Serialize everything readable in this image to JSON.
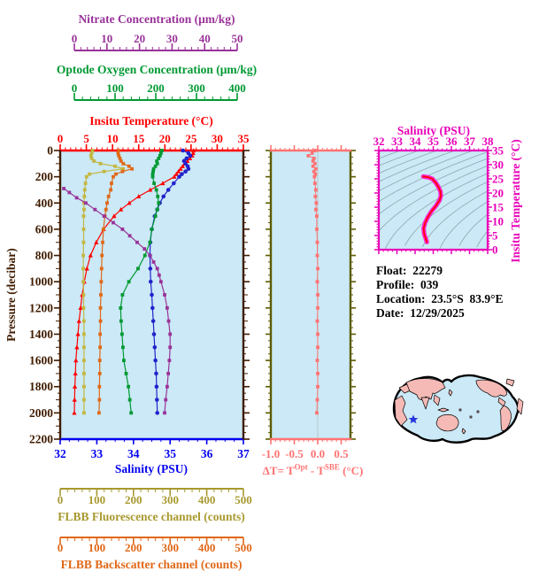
{
  "figure": {
    "background": "#ffffff",
    "plot_background": "#cbe9f6"
  },
  "axes": {
    "nitrate": {
      "title": "Nitrate Concentration (μm/kg)",
      "color": "#993399",
      "range": [
        0,
        50
      ],
      "ticks": [
        0,
        10,
        20,
        30,
        40,
        50
      ],
      "tick_labels": [
        "0",
        "10",
        "20",
        "30",
        "40",
        "50"
      ]
    },
    "oxygen": {
      "title": "Optode Oxygen Concentration (μm/kg)",
      "color": "#009933",
      "range": [
        0,
        400
      ],
      "ticks": [
        0,
        100,
        200,
        300,
        400
      ],
      "tick_labels": [
        "0",
        "100",
        "200",
        "300",
        "400"
      ]
    },
    "temperature": {
      "title": "Insitu Temperature (°C)",
      "color": "#ff0000",
      "range": [
        0,
        35
      ],
      "ticks": [
        0,
        5,
        10,
        15,
        20,
        25,
        30,
        35
      ],
      "tick_labels": [
        "0",
        "5",
        "10",
        "15",
        "20",
        "25",
        "30",
        "35"
      ]
    },
    "pressure": {
      "title": "Pressure (decibar)",
      "color": "#401c00",
      "range": [
        0,
        2200
      ],
      "ticks": [
        0,
        200,
        400,
        600,
        800,
        1000,
        1200,
        1400,
        1600,
        1800,
        2000,
        2200
      ],
      "tick_labels": [
        "0",
        "200",
        "400",
        "600",
        "800",
        "1000",
        "1200",
        "1400",
        "1600",
        "1800",
        "2000",
        "2200"
      ]
    },
    "salinity": {
      "title": "Salinity (PSU)",
      "color": "#0000f0",
      "range": [
        32,
        37
      ],
      "ticks": [
        32,
        33,
        34,
        35,
        36,
        37
      ],
      "tick_labels": [
        "32",
        "33",
        "34",
        "35",
        "36",
        "37"
      ]
    },
    "fluorescence": {
      "title": "FLBB Fluorescence channel (counts)",
      "color": "#a8992e",
      "range": [
        0,
        500
      ],
      "ticks": [
        0,
        100,
        200,
        300,
        400,
        500
      ],
      "tick_labels": [
        "0",
        "100",
        "200",
        "300",
        "400",
        "500"
      ]
    },
    "backscatter": {
      "title": "FLBB Backscatter channel (counts)",
      "color": "#e06818",
      "range": [
        0,
        500
      ],
      "ticks": [
        0,
        100,
        200,
        300,
        400,
        500
      ],
      "tick_labels": [
        "0",
        "100",
        "200",
        "300",
        "400",
        "500"
      ]
    },
    "delta_t": {
      "label_prefix": "ΔT= T",
      "label_sup1": "Opt",
      "label_mid": " - T",
      "label_sup2": "SBE",
      "label_suffix": " (°C)",
      "color": "#ff7373",
      "frame_color": "#5c5c00",
      "range": [
        -1.0,
        0.7
      ],
      "ticks": [
        -1.0,
        -0.5,
        0.0,
        0.5
      ],
      "tick_labels": [
        "-1.0",
        "-0.5",
        "0.0",
        "0.5"
      ]
    },
    "ts": {
      "title": "Salinity (PSU)",
      "ylabel": "Insitu Temperature (°C)",
      "color": "#e800b8",
      "x_range": [
        32,
        38
      ],
      "x_ticks": [
        32,
        33,
        34,
        35,
        36,
        37,
        38
      ],
      "x_tick_labels": [
        "32",
        "33",
        "34",
        "35",
        "36",
        "37",
        "38"
      ],
      "y_range": [
        0,
        35
      ],
      "y_ticks": [
        0,
        5,
        10,
        15,
        20,
        25,
        30,
        35
      ],
      "y_tick_labels": [
        "0",
        "5",
        "10",
        "15",
        "20",
        "25",
        "30",
        "35"
      ]
    }
  },
  "info": {
    "lines": [
      "Float:  22279",
      "Profile:  039",
      "Location:  23.5°S  83.9°E",
      "Date:  12/29/2025"
    ]
  },
  "map": {
    "ocean": "#cbe9f6",
    "land": "#f6bab6",
    "outline": "#000000",
    "marker_color": "#2233dd"
  },
  "chart_data": [
    {
      "id": "profile-plot",
      "type": "line",
      "ylabel": "Pressure (decibar)",
      "ylim": [
        0,
        2200
      ],
      "grid": false,
      "pressure": [
        0,
        20,
        40,
        60,
        80,
        100,
        120,
        140,
        160,
        180,
        200,
        250,
        300,
        350,
        400,
        450,
        500,
        600,
        700,
        800,
        900,
        1000,
        1100,
        1200,
        1300,
        1400,
        1500,
        1600,
        1700,
        1800,
        1900,
        2000
      ],
      "series": [
        {
          "name": "Insitu Temperature (°C)",
          "color": "#ff0000",
          "marker": "triangle",
          "xlim": [
            0,
            35
          ],
          "values": [
            25.5,
            25.4,
            25.2,
            24.8,
            24.3,
            23.8,
            23.4,
            23.0,
            22.6,
            22.2,
            21.8,
            19.6,
            17.2,
            15.0,
            13.2,
            11.6,
            10.3,
            8.3,
            6.9,
            5.8,
            5.1,
            4.6,
            4.2,
            3.9,
            3.6,
            3.4,
            3.2,
            3.0,
            2.9,
            2.8,
            2.75,
            2.7
          ]
        },
        {
          "name": "Salinity (PSU)",
          "color": "#2222cc",
          "marker": "circle",
          "xlim": [
            32,
            37
          ],
          "values": [
            35.35,
            35.5,
            35.55,
            35.45,
            35.38,
            35.42,
            35.48,
            35.5,
            35.42,
            35.32,
            35.25,
            35.1,
            34.95,
            34.82,
            34.72,
            34.65,
            34.58,
            34.5,
            34.46,
            34.45,
            34.46,
            34.47,
            34.5,
            34.52,
            34.54,
            34.56,
            34.58,
            34.6,
            34.62,
            34.63,
            34.64,
            34.65
          ]
        },
        {
          "name": "Optode Oxygen Concentration (μm/kg)",
          "color": "#009933",
          "marker": "square",
          "xlim": [
            0,
            400
          ],
          "values": [
            222,
            220,
            218,
            215,
            211,
            212,
            208,
            204,
            203,
            202,
            202,
            205,
            210,
            213,
            215,
            212,
            208,
            200,
            196,
            185,
            170,
            150,
            136,
            132,
            133,
            135,
            137,
            139,
            144,
            149,
            152,
            155
          ]
        },
        {
          "name": "FLBB Fluorescence channel (counts)",
          "color": "#c4b742",
          "marker": "square",
          "xlim": [
            0,
            500
          ],
          "values": [
            88,
            86,
            84,
            86,
            92,
            110,
            150,
            172,
            120,
            80,
            72,
            69,
            67,
            66,
            65,
            65,
            64,
            64,
            64,
            63,
            63,
            63,
            64,
            64,
            65,
            65,
            65,
            65,
            65,
            65,
            65,
            65
          ]
        },
        {
          "name": "FLBB Backscatter channel (counts)",
          "color": "#e06818",
          "marker": "square",
          "xlim": [
            0,
            500
          ],
          "values": [
            160,
            158,
            160,
            163,
            166,
            172,
            188,
            196,
            170,
            152,
            145,
            140,
            138,
            132,
            128,
            125,
            122,
            118,
            116,
            114,
            113,
            112,
            111,
            110,
            110,
            109,
            109,
            108,
            108,
            107,
            107,
            106
          ]
        },
        {
          "name": "Nitrate Concentration (μm/kg)",
          "color": "#993399",
          "marker": "square",
          "xlim": [
            0,
            50
          ],
          "pressure": [
            290,
            320,
            360,
            400,
            450,
            500,
            550,
            600,
            650,
            700,
            750,
            800,
            850,
            900,
            950,
            1000,
            1100,
            1200,
            1300,
            1400,
            1500,
            1600,
            1700,
            1800,
            1900,
            2000
          ],
          "values": [
            1.0,
            2.5,
            4.5,
            7.0,
            9.5,
            12.0,
            14.5,
            17.0,
            19.0,
            21.0,
            23.0,
            24.5,
            25.5,
            26.5,
            27.0,
            27.5,
            28.5,
            29.2,
            29.6,
            30.0,
            30.0,
            29.8,
            29.5,
            29.2,
            28.8,
            28.5
          ]
        }
      ]
    },
    {
      "id": "delta-t-plot",
      "type": "line",
      "xlabel": "ΔT= T(Opt) - T(SBE) (°C)",
      "xlim": [
        -1.0,
        0.7
      ],
      "ylim": [
        0,
        2200
      ],
      "color": "#ff7373",
      "pressure": [
        0,
        20,
        40,
        60,
        80,
        100,
        120,
        140,
        160,
        180,
        200,
        250,
        300,
        350,
        400,
        450,
        500,
        600,
        700,
        800,
        900,
        1000,
        1100,
        1200,
        1300,
        1400,
        1500,
        1600,
        1700,
        1800,
        1900,
        2000
      ],
      "values": [
        -0.05,
        -0.12,
        -0.2,
        -0.08,
        -0.1,
        -0.06,
        -0.1,
        -0.04,
        -0.08,
        -0.05,
        -0.07,
        -0.06,
        -0.04,
        -0.05,
        -0.03,
        -0.04,
        -0.02,
        -0.02,
        -0.01,
        -0.01,
        0.0,
        -0.01,
        0.0,
        0.0,
        -0.01,
        0.0,
        0.0,
        -0.01,
        0.0,
        0.0,
        -0.01,
        -0.02
      ]
    },
    {
      "id": "ts-diagram",
      "type": "line",
      "title": "Salinity (PSU)",
      "xlim": [
        32,
        38
      ],
      "ylim": [
        0,
        35
      ],
      "curve_outer_color": "#ff22cc",
      "curve_inner_color": "#ff0000",
      "contour_color": "#8fa6ad",
      "curve": [
        [
          34.45,
          25.8
        ],
        [
          34.75,
          25.5
        ],
        [
          34.95,
          25.0
        ],
        [
          35.15,
          23.5
        ],
        [
          35.3,
          22.0
        ],
        [
          35.4,
          20.5
        ],
        [
          35.42,
          19.0
        ],
        [
          35.35,
          17.5
        ],
        [
          35.15,
          15.5
        ],
        [
          34.9,
          13.5
        ],
        [
          34.7,
          11.5
        ],
        [
          34.55,
          9.5
        ],
        [
          34.47,
          7.5
        ],
        [
          34.5,
          5.5
        ],
        [
          34.58,
          4.0
        ],
        [
          34.65,
          2.7
        ]
      ]
    }
  ]
}
